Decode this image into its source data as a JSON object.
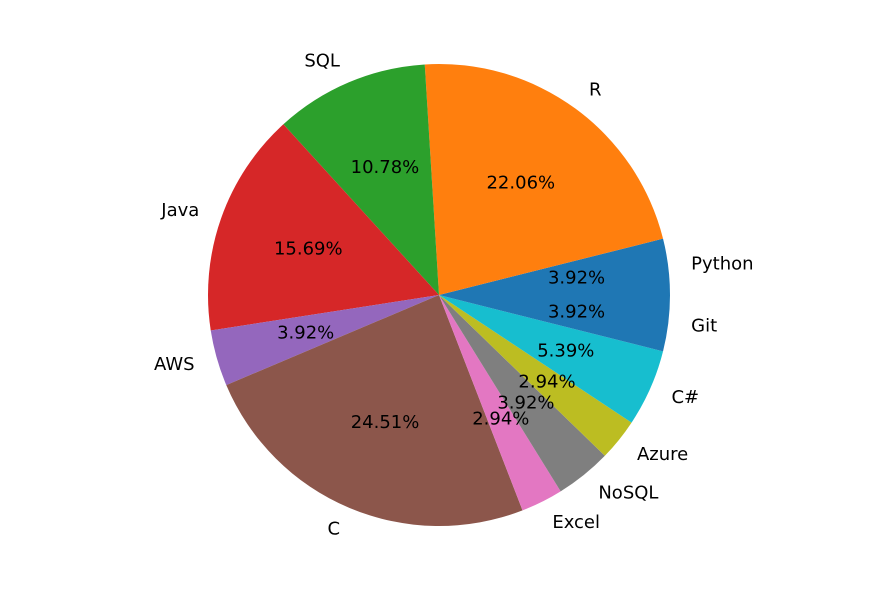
{
  "chart_data": {
    "type": "pie",
    "start_angle_deg": 0,
    "direction": "counterclockwise",
    "slices": [
      {
        "label": "Python",
        "value": 3.92,
        "pct_label": "3.92%",
        "color": "#1f77b4"
      },
      {
        "label": "R",
        "value": 22.06,
        "pct_label": "22.06%",
        "color": "#ff7f0e"
      },
      {
        "label": "SQL",
        "value": 10.78,
        "pct_label": "10.78%",
        "color": "#2ca02c"
      },
      {
        "label": "Java",
        "value": 15.69,
        "pct_label": "15.69%",
        "color": "#d62728"
      },
      {
        "label": "AWS",
        "value": 3.92,
        "pct_label": "3.92%",
        "color": "#9467bd"
      },
      {
        "label": "C",
        "value": 24.51,
        "pct_label": "24.51%",
        "color": "#8c564b"
      },
      {
        "label": "Excel",
        "value": 2.94,
        "pct_label": "2.94%",
        "color": "#e377c2"
      },
      {
        "label": "NoSQL",
        "value": 3.92,
        "pct_label": "3.92%",
        "color": "#7f7f7f"
      },
      {
        "label": "Azure",
        "value": 2.94,
        "pct_label": "2.94%",
        "color": "#bcbd22"
      },
      {
        "label": "C#",
        "value": 5.39,
        "pct_label": "5.39%",
        "color": "#17becf"
      },
      {
        "label": "Git",
        "value": 3.92,
        "pct_label": "3.92%",
        "color": "#1f77b4"
      }
    ]
  }
}
